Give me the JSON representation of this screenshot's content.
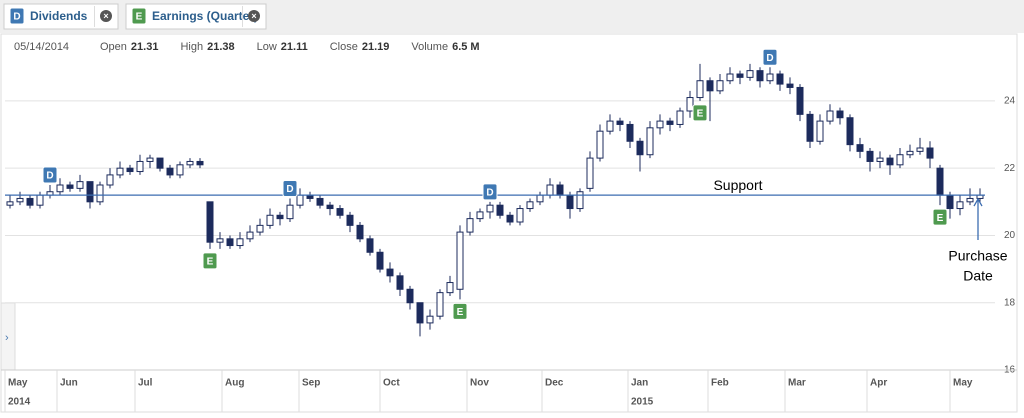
{
  "tabs": [
    {
      "icon": "D",
      "label": "Dividends"
    },
    {
      "icon": "E",
      "label": "Earnings (Quarter)"
    }
  ],
  "info": {
    "date": "05/14/2014",
    "fields": [
      {
        "label": "Open",
        "value": 21.31
      },
      {
        "label": "High",
        "value": 21.38
      },
      {
        "label": "Low",
        "value": 21.11
      },
      {
        "label": "Close",
        "value": 21.19
      },
      {
        "label": "Volume",
        "value": "6.5 M"
      }
    ]
  },
  "chart_data": {
    "type": "candlestick",
    "up_color": "#ffffff",
    "down_color": "#1c2b5c",
    "edge_color": "#1c2b5c",
    "ohlc": [
      [
        20.9,
        21.2,
        20.8,
        21.0
      ],
      [
        21.0,
        21.3,
        20.9,
        21.1
      ],
      [
        21.1,
        21.2,
        20.8,
        20.9
      ],
      [
        20.9,
        21.3,
        20.8,
        21.2
      ],
      [
        21.2,
        21.5,
        21.1,
        21.3
      ],
      [
        21.3,
        21.7,
        21.2,
        21.5
      ],
      [
        21.5,
        21.6,
        21.3,
        21.4
      ],
      [
        21.4,
        21.8,
        21.3,
        21.6
      ],
      [
        21.6,
        21.6,
        20.8,
        21.0
      ],
      [
        21.0,
        21.6,
        20.9,
        21.5
      ],
      [
        21.5,
        22.0,
        21.4,
        21.8
      ],
      [
        21.8,
        22.2,
        21.7,
        22.0
      ],
      [
        22.0,
        22.1,
        21.8,
        21.9
      ],
      [
        21.9,
        22.4,
        21.8,
        22.2
      ],
      [
        22.2,
        22.4,
        22.0,
        22.3
      ],
      [
        22.3,
        22.3,
        21.9,
        22.0
      ],
      [
        22.0,
        22.1,
        21.7,
        21.8
      ],
      [
        21.8,
        22.2,
        21.7,
        22.1
      ],
      [
        22.1,
        22.3,
        22.0,
        22.2
      ],
      [
        22.2,
        22.3,
        22.0,
        22.1
      ],
      [
        21.0,
        21.0,
        19.6,
        19.8
      ],
      [
        19.8,
        20.1,
        19.6,
        19.9
      ],
      [
        19.9,
        20.0,
        19.6,
        19.7
      ],
      [
        19.7,
        20.1,
        19.6,
        19.9
      ],
      [
        19.9,
        20.3,
        19.8,
        20.1
      ],
      [
        20.1,
        20.5,
        20.0,
        20.3
      ],
      [
        20.3,
        20.8,
        20.2,
        20.6
      ],
      [
        20.6,
        20.7,
        20.3,
        20.5
      ],
      [
        20.5,
        21.1,
        20.4,
        20.9
      ],
      [
        20.9,
        21.4,
        20.8,
        21.2
      ],
      [
        21.2,
        21.3,
        21.0,
        21.1
      ],
      [
        21.1,
        21.2,
        20.8,
        20.9
      ],
      [
        20.9,
        21.0,
        20.6,
        20.8
      ],
      [
        20.8,
        20.9,
        20.5,
        20.6
      ],
      [
        20.6,
        20.7,
        20.1,
        20.3
      ],
      [
        20.3,
        20.4,
        19.8,
        19.9
      ],
      [
        19.9,
        20.0,
        19.4,
        19.5
      ],
      [
        19.5,
        19.6,
        18.9,
        19.0
      ],
      [
        19.0,
        19.2,
        18.6,
        18.8
      ],
      [
        18.8,
        18.9,
        18.2,
        18.4
      ],
      [
        18.4,
        18.5,
        17.8,
        18.0
      ],
      [
        18.0,
        18.0,
        17.0,
        17.4
      ],
      [
        17.4,
        17.8,
        17.2,
        17.6
      ],
      [
        17.6,
        18.4,
        17.5,
        18.3
      ],
      [
        18.3,
        18.8,
        18.2,
        18.6
      ],
      [
        18.4,
        20.3,
        18.1,
        20.1
      ],
      [
        20.1,
        20.7,
        20.0,
        20.5
      ],
      [
        20.5,
        20.8,
        20.4,
        20.7
      ],
      [
        20.7,
        21.0,
        20.5,
        20.9
      ],
      [
        20.9,
        21.0,
        20.5,
        20.6
      ],
      [
        20.6,
        20.7,
        20.3,
        20.4
      ],
      [
        20.4,
        20.9,
        20.3,
        20.8
      ],
      [
        20.8,
        21.1,
        20.7,
        21.0
      ],
      [
        21.0,
        21.3,
        20.9,
        21.2
      ],
      [
        21.2,
        21.7,
        21.1,
        21.5
      ],
      [
        21.5,
        21.6,
        21.1,
        21.2
      ],
      [
        21.2,
        21.3,
        20.5,
        20.8
      ],
      [
        20.8,
        21.4,
        20.7,
        21.3
      ],
      [
        21.4,
        22.5,
        21.3,
        22.3
      ],
      [
        22.3,
        23.3,
        22.2,
        23.1
      ],
      [
        23.1,
        23.6,
        23.0,
        23.4
      ],
      [
        23.4,
        23.5,
        23.1,
        23.3
      ],
      [
        23.3,
        23.4,
        22.6,
        22.8
      ],
      [
        22.8,
        22.9,
        21.9,
        22.4
      ],
      [
        22.4,
        23.4,
        22.3,
        23.2
      ],
      [
        23.2,
        23.6,
        23.0,
        23.4
      ],
      [
        23.4,
        23.5,
        23.1,
        23.3
      ],
      [
        23.3,
        23.8,
        23.2,
        23.7
      ],
      [
        23.7,
        24.3,
        23.5,
        24.1
      ],
      [
        24.1,
        25.1,
        24.0,
        24.6
      ],
      [
        24.6,
        24.7,
        23.4,
        24.3
      ],
      [
        24.3,
        24.8,
        24.2,
        24.6
      ],
      [
        24.6,
        25.0,
        24.5,
        24.8
      ],
      [
        24.8,
        24.9,
        24.5,
        24.7
      ],
      [
        24.7,
        25.1,
        24.6,
        24.9
      ],
      [
        24.9,
        25.0,
        24.4,
        24.6
      ],
      [
        24.6,
        25.0,
        24.5,
        24.8
      ],
      [
        24.8,
        24.9,
        24.3,
        24.5
      ],
      [
        24.5,
        24.7,
        24.2,
        24.4
      ],
      [
        24.4,
        24.5,
        23.4,
        23.6
      ],
      [
        23.6,
        23.7,
        22.6,
        22.8
      ],
      [
        22.8,
        23.6,
        22.7,
        23.4
      ],
      [
        23.4,
        23.9,
        23.3,
        23.7
      ],
      [
        23.7,
        23.8,
        23.3,
        23.5
      ],
      [
        23.5,
        23.6,
        22.5,
        22.7
      ],
      [
        22.7,
        22.9,
        22.3,
        22.5
      ],
      [
        22.5,
        22.6,
        21.9,
        22.2
      ],
      [
        22.2,
        22.5,
        22.0,
        22.3
      ],
      [
        22.3,
        22.4,
        21.8,
        22.1
      ],
      [
        22.1,
        22.6,
        22.0,
        22.4
      ],
      [
        22.4,
        22.7,
        22.3,
        22.5
      ],
      [
        22.5,
        22.9,
        22.4,
        22.6
      ],
      [
        22.6,
        22.8,
        22.0,
        22.3
      ],
      [
        22.0,
        22.1,
        20.9,
        21.2
      ],
      [
        21.2,
        21.3,
        20.5,
        20.8
      ],
      [
        20.8,
        21.2,
        20.6,
        21.0
      ],
      [
        21.0,
        21.4,
        20.9,
        21.1
      ],
      [
        21.1,
        21.4,
        21.0,
        21.2
      ]
    ],
    "xlim": [
      0,
      98
    ],
    "xticks": [
      {
        "value": 0,
        "label": "May"
      },
      {
        "value": 5.2,
        "label": "Jun"
      },
      {
        "value": 13,
        "label": "Jul"
      },
      {
        "value": 21.7,
        "label": "Aug"
      },
      {
        "value": 29.4,
        "label": "Sep"
      },
      {
        "value": 37.5,
        "label": "Oct"
      },
      {
        "value": 46.2,
        "label": "Nov"
      },
      {
        "value": 53.7,
        "label": "Dec"
      },
      {
        "value": 62.3,
        "label": "Jan"
      },
      {
        "value": 70.3,
        "label": "Feb"
      },
      {
        "value": 78,
        "label": "Mar"
      },
      {
        "value": 86.2,
        "label": "Apr"
      },
      {
        "value": 94.5,
        "label": "May"
      }
    ],
    "years": [
      {
        "value": 0,
        "label": "2014"
      },
      {
        "value": 62.3,
        "label": "2015"
      }
    ],
    "ylim": [
      16,
      25.9
    ],
    "yticks": [
      16,
      18,
      20,
      22,
      24
    ],
    "grid": true,
    "events": [
      {
        "label": "D",
        "index": 4
      },
      {
        "label": "E",
        "index": 20
      },
      {
        "label": "D",
        "index": 28
      },
      {
        "label": "E",
        "index": 45
      },
      {
        "label": "D",
        "index": 48
      },
      {
        "label": "E",
        "index": 69
      },
      {
        "label": "D",
        "index": 76
      },
      {
        "label": "E",
        "index": 93
      }
    ],
    "support": {
      "label": "Support",
      "value": 21.2
    },
    "purchase": {
      "lines": [
        "Purchase",
        "Date"
      ],
      "index": 97.3
    }
  }
}
